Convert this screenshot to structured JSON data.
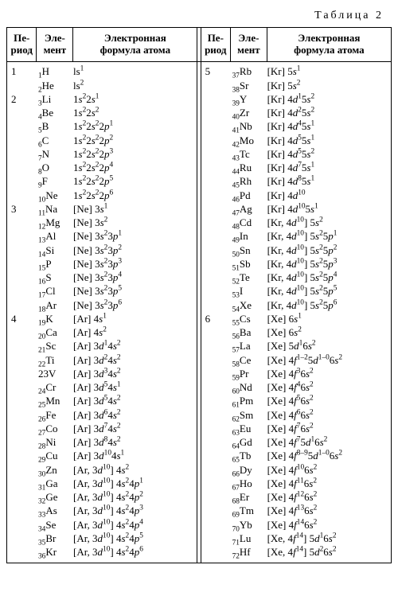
{
  "caption": "Таблица 2",
  "headers": {
    "period": "Пе-\nриод",
    "element": "Эле-\nмент",
    "formula": "Электронная\nформула атома"
  },
  "left": [
    {
      "period": "1",
      "z": "1",
      "sym": "H",
      "formula": "ls<sup>1</sup>"
    },
    {
      "period": "",
      "z": "2",
      "sym": "He",
      "formula": "ls<sup>2</sup>"
    },
    {
      "period": "2",
      "z": "3",
      "sym": "Li",
      "formula": "1<i>s</i><sup>2</sup>2<i>s</i><sup>1</sup>"
    },
    {
      "period": "",
      "z": "4",
      "sym": "Be",
      "formula": "1<i>s</i><sup>2</sup>2<i>s</i><sup>2</sup>"
    },
    {
      "period": "",
      "z": "5",
      "sym": "B",
      "formula": "1<i>s</i><sup>2</sup>2<i>s</i><sup>2</sup>2<i>p</i><sup>1</sup>"
    },
    {
      "period": "",
      "z": "6",
      "sym": "C",
      "formula": "1<i>s</i><sup>2</sup>2<i>s</i><sup>2</sup>2<i>p</i><sup>2</sup>"
    },
    {
      "period": "",
      "z": "7",
      "sym": "N",
      "formula": "1<i>s</i><sup>2</sup>2<i>s</i><sup>2</sup>2<i>p</i><sup>3</sup>"
    },
    {
      "period": "",
      "z": "8",
      "sym": "O",
      "formula": "1<i>s</i><sup>2</sup>2<i>s</i><sup>2</sup>2<i>p</i><sup>4</sup>"
    },
    {
      "period": "",
      "z": "9",
      "sym": "F",
      "formula": "1<i>s</i><sup>2</sup>2<i>s</i><sup>2</sup>2<i>p</i><sup>5</sup>"
    },
    {
      "period": "",
      "z": "10",
      "sym": "Ne",
      "formula": "1<i>s</i><sup>2</sup>2<i>s</i><sup>2</sup>2<i>p</i><sup>6</sup>"
    },
    {
      "period": "3",
      "z": "11",
      "sym": "Na",
      "formula": "[Ne] 3<i>s</i><sup>1</sup>"
    },
    {
      "period": "",
      "z": "12",
      "sym": "Mg",
      "formula": "[Ne] 3<i>s</i><sup>2</sup>"
    },
    {
      "period": "",
      "z": "13",
      "sym": "Al",
      "formula": "[Ne] 3<i>s</i><sup>2</sup>3<i>p</i><sup>1</sup>"
    },
    {
      "period": "",
      "z": "14",
      "sym": "Si",
      "formula": "[Ne] 3<i>s</i><sup>2</sup>3<i>p</i><sup>2</sup>"
    },
    {
      "period": "",
      "z": "15",
      "sym": "P",
      "formula": "[Ne] 3<i>s</i><sup>2</sup>3<i>p</i><sup>3</sup>"
    },
    {
      "period": "",
      "z": "16",
      "sym": "S",
      "formula": "[Ne] 3<i>s</i><sup>2</sup>3<i>p</i><sup>4</sup>"
    },
    {
      "period": "",
      "z": "17",
      "sym": "Cl",
      "formula": "[Ne] 3<i>s</i><sup>2</sup>3<i>p</i><sup>5</sup>"
    },
    {
      "period": "",
      "z": "18",
      "sym": "Ar",
      "formula": "[Ne] 3<i>s</i><sup>2</sup>3<i>p</i><sup>6</sup>"
    },
    {
      "period": "4",
      "z": "19",
      "sym": "K",
      "formula": "[Ar] 4<i>s</i><sup>1</sup>"
    },
    {
      "period": "",
      "z": "20",
      "sym": "Ca",
      "formula": "[Ar] 4<i>s</i><sup>2</sup>"
    },
    {
      "period": "",
      "z": "21",
      "sym": "Sc",
      "formula": "[Ar] 3<i>d</i><sup>1</sup>4<i>s</i><sup>2</sup>"
    },
    {
      "period": "",
      "z": "22",
      "sym": "Ti",
      "formula": "[Ar] 3<i>d</i><sup>2</sup>4<i>s</i><sup>2</sup>"
    },
    {
      "period": "",
      "z": "",
      "sym": "23V",
      "formula": "[Ar] 3<i>d</i><sup>3</sup>4<i>s</i><sup>2</sup>",
      "rawSym": true
    },
    {
      "period": "",
      "z": "24",
      "sym": "Cr",
      "formula": "[Ar] 3<i>d</i><sup>5</sup>4<i>s</i><sup>1</sup>"
    },
    {
      "period": "",
      "z": "25",
      "sym": "Mn",
      "formula": "[Ar] 3<i>d</i><sup>5</sup>4<i>s</i><sup>2</sup>"
    },
    {
      "period": "",
      "z": "26",
      "sym": "Fe",
      "formula": "[Ar] 3<i>d</i><sup>6</sup>4<i>s</i><sup>2</sup>"
    },
    {
      "period": "",
      "z": "27",
      "sym": "Co",
      "formula": "[Ar] 3<i>d</i><sup>7</sup>4<i>s</i><sup>2</sup>"
    },
    {
      "period": "",
      "z": "28",
      "sym": "Ni",
      "formula": "[Ar] 3<i>d</i><sup>8</sup>4<i>s</i><sup>2</sup>"
    },
    {
      "period": "",
      "z": "29",
      "sym": "Cu",
      "formula": "[Ar] 3<i>d</i><sup>10</sup>4<i>s</i><sup>1</sup>"
    },
    {
      "period": "",
      "z": "30",
      "sym": "Zn",
      "formula": "[Ar, 3<i>d</i><sup>10</sup>] 4<i>s</i><sup>2</sup>"
    },
    {
      "period": "",
      "z": "31",
      "sym": "Ga",
      "formula": "[Ar, 3<i>d</i><sup>10</sup>] 4<i>s</i><sup>2</sup>4<i>p</i><sup>1</sup>"
    },
    {
      "period": "",
      "z": "32",
      "sym": "Ge",
      "formula": "[Ar, 3<i>d</i><sup>10</sup>] 4<i>s</i><sup>2</sup>4<i>p</i><sup>2</sup>"
    },
    {
      "period": "",
      "z": "33",
      "sym": "As",
      "formula": "[Ar, 3<i>d</i><sup>10</sup>] 4<i>s</i><sup>2</sup>4<i>p</i><sup>3</sup>"
    },
    {
      "period": "",
      "z": "34",
      "sym": "Se",
      "formula": "[Ar, 3<i>d</i><sup>10</sup>] 4<i>s</i><sup>2</sup>4<i>p</i><sup>4</sup>"
    },
    {
      "period": "",
      "z": "35",
      "sym": "Br",
      "formula": "[Ar, 3<i>d</i><sup>10</sup>] 4<i>s</i><sup>2</sup>4<i>p</i><sup>5</sup>"
    },
    {
      "period": "",
      "z": "36",
      "sym": "Kr",
      "formula": "[Ar, 3<i>d</i><sup>10</sup>] 4<i>s</i><sup>2</sup>4<i>p</i><sup>6</sup>"
    }
  ],
  "right": [
    {
      "period": "5",
      "z": "37",
      "sym": "Rb",
      "formula": "[Kr] 5<i>s</i><sup>1</sup>"
    },
    {
      "period": "",
      "z": "38",
      "sym": "Sr",
      "formula": "[Kr] 5<i>s</i><sup>2</sup>"
    },
    {
      "period": "",
      "z": "39",
      "sym": "Y",
      "formula": "[Kr] 4<i>d</i><sup>1</sup>5<i>s</i><sup>2</sup>"
    },
    {
      "period": "",
      "z": "40",
      "sym": "Zr",
      "formula": "[Kr] 4<i>d</i><sup>2</sup>5<i>s</i><sup>2</sup>"
    },
    {
      "period": "",
      "z": "41",
      "sym": "Nb",
      "formula": "[Kr] 4<i>d</i><sup>4</sup>5<i>s</i><sup>1</sup>"
    },
    {
      "period": "",
      "z": "42",
      "sym": "Mo",
      "formula": "[Kr] 4<i>d</i><sup>5</sup>5<i>s</i><sup>1</sup>"
    },
    {
      "period": "",
      "z": "43",
      "sym": "Tc",
      "formula": "[Kr] 4<i>d</i><sup>5</sup>5<i>s</i><sup>2</sup>"
    },
    {
      "period": "",
      "z": "44",
      "sym": "Ru",
      "formula": "[Kr] 4<i>d</i><sup>7</sup>5<i>s</i><sup>1</sup>"
    },
    {
      "period": "",
      "z": "45",
      "sym": "Rh",
      "formula": "[Kr] 4<i>d</i><sup>8</sup>5<i>s</i><sup>1</sup>"
    },
    {
      "period": "",
      "z": "46",
      "sym": "Pd",
      "formula": "[Kr] 4<i>d</i><sup>10</sup>"
    },
    {
      "period": "",
      "z": "47",
      "sym": "Ag",
      "formula": "[Kr] 4<i>d</i><sup>10</sup>5<i>s</i><sup>1</sup>"
    },
    {
      "period": "",
      "z": "48",
      "sym": "Cd",
      "formula": "[Kr, 4<i>d</i><sup>10</sup>] 5<i>s</i><sup>2</sup>"
    },
    {
      "period": "",
      "z": "49",
      "sym": "In",
      "formula": "[Kr, 4<i>d</i><sup>10</sup>] 5<i>s</i><sup>2</sup>5<i>p</i><sup>1</sup>"
    },
    {
      "period": "",
      "z": "50",
      "sym": "Sn",
      "formula": "[Kr, 4<i>d</i><sup>10</sup>] 5<i>s</i><sup>2</sup>5<i>p</i><sup>2</sup>"
    },
    {
      "period": "",
      "z": "51",
      "sym": "Sb",
      "formula": "[Kr, 4<i>d</i><sup>10</sup>] 5<i>s</i><sup>2</sup>5<i>p</i><sup>3</sup>"
    },
    {
      "period": "",
      "z": "52",
      "sym": "Te",
      "formula": "[Kr, 4<i>d</i><sup>10</sup>] 5<i>s</i><sup>2</sup>5<i>p</i><sup>4</sup>"
    },
    {
      "period": "",
      "z": "53",
      "sym": "I",
      "formula": "[Kr, 4<i>d</i><sup>10</sup>] 5<i>s</i><sup>2</sup>5<i>p</i><sup>5</sup>"
    },
    {
      "period": "",
      "z": "54",
      "sym": "Xe",
      "formula": "[Kr, 4<i>d</i><sup>10</sup>] 5<i>s</i><sup>2</sup>5<i>p</i><sup>6</sup>"
    },
    {
      "period": "6",
      "z": "55",
      "sym": "Cs",
      "formula": "[Xe] 6<i>s</i><sup>1</sup>"
    },
    {
      "period": "",
      "z": "56",
      "sym": "Ba",
      "formula": "[Xe] 6<i>s</i><sup>2</sup>"
    },
    {
      "period": "",
      "z": "57",
      "sym": "La",
      "formula": "[Xe] 5<i>d</i><sup>1</sup>6<i>s</i><sup>2</sup>"
    },
    {
      "period": "",
      "z": "58",
      "sym": "Ce",
      "formula": "[Xe] 4<i>f</i><sup>1–2</sup>5<i>d</i><sup>1–0</sup>6<i>s</i><sup>2</sup>"
    },
    {
      "period": "",
      "z": "59",
      "sym": "Pr",
      "formula": "[Xe] 4<i>f</i><sup>3</sup>6<i>s</i><sup>2</sup>"
    },
    {
      "period": "",
      "z": "60",
      "sym": "Nd",
      "formula": "[Xe] 4<i>f</i><sup>4</sup>6<i>s</i><sup>2</sup>"
    },
    {
      "period": "",
      "z": "61",
      "sym": "Pm",
      "formula": "[Xe] 4<i>f</i><sup>5</sup>6<i>s</i><sup>2</sup>"
    },
    {
      "period": "",
      "z": "62",
      "sym": "Sm",
      "formula": "[Xe] 4<i>f</i><sup>6</sup>6<i>s</i><sup>2</sup>"
    },
    {
      "period": "",
      "z": "63",
      "sym": "Eu",
      "formula": "[Xe] 4<i>f</i><sup>7</sup>6<i>s</i><sup>2</sup>"
    },
    {
      "period": "",
      "z": "64",
      "sym": "Gd",
      "formula": "[Xe] 4<i>f</i><sup>7</sup>5<i>d</i><sup>1</sup>6<i>s</i><sup>2</sup>"
    },
    {
      "period": "",
      "z": "65",
      "sym": "Tb",
      "formula": "[Xe] 4<i>f</i><sup>8–9</sup>5<i>d</i><sup>1–0</sup>6<i>s</i><sup>2</sup>"
    },
    {
      "period": "",
      "z": "66",
      "sym": "Dy",
      "formula": "[Xe] 4<i>f</i><sup>10</sup>6<i>s</i><sup>2</sup>"
    },
    {
      "period": "",
      "z": "67",
      "sym": "Ho",
      "formula": "[Xe] 4<i>f</i><sup>11</sup>6<i>s</i><sup>2</sup>"
    },
    {
      "period": "",
      "z": "68",
      "sym": "Er",
      "formula": "[Xe] 4<i>f</i><sup>12</sup>6<i>s</i><sup>2</sup>"
    },
    {
      "period": "",
      "z": "69",
      "sym": "Tm",
      "formula": "[Xe] 4<i>f</i><sup>13</sup>6<i>s</i><sup>2</sup>"
    },
    {
      "period": "",
      "z": "70",
      "sym": "Yb",
      "formula": "[Xe] 4<i>f</i><sup>14</sup>6<i>s</i><sup>2</sup>"
    },
    {
      "period": "",
      "z": "71",
      "sym": "Lu",
      "formula": "[Xe, 4<i>f</i><sup>14</sup>] 5<i>d</i><sup>1</sup>6<i>s</i><sup>2</sup>"
    },
    {
      "period": "",
      "z": "72",
      "sym": "Hf",
      "formula": "[Xe, 4<i>f</i><sup>14</sup>] 5<i>d</i><sup>2</sup>6<i>s</i><sup>2</sup>"
    }
  ]
}
